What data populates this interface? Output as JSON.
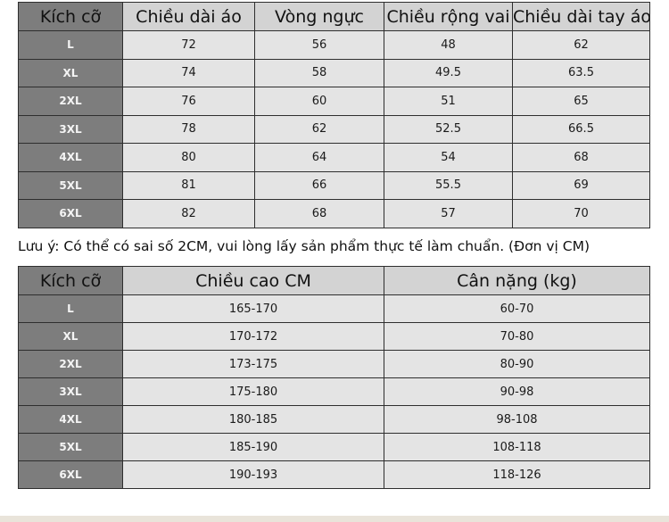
{
  "size_table": {
    "header": [
      "Kích cỡ",
      "Chiều dài áo",
      "Vòng ngực",
      "Chiều rộng vai",
      "Chiều dài tay áo"
    ],
    "rows": [
      [
        "L",
        "72",
        "56",
        "48",
        "62"
      ],
      [
        "XL",
        "74",
        "58",
        "49.5",
        "63.5"
      ],
      [
        "2XL",
        "76",
        "60",
        "51",
        "65"
      ],
      [
        "3XL",
        "78",
        "62",
        "52.5",
        "66.5"
      ],
      [
        "4XL",
        "80",
        "64",
        "54",
        "68"
      ],
      [
        "5XL",
        "81",
        "66",
        "55.5",
        "69"
      ],
      [
        "6XL",
        "82",
        "68",
        "57",
        "70"
      ]
    ]
  },
  "note": "Lưu ý: Có thể có sai số 2CM, vui lòng lấy sản phẩm thực tế làm chuẩn. (Đơn vị CM)",
  "fit_table": {
    "header": [
      "Kích cỡ",
      "Chiều cao CM",
      "Cân nặng (kg)"
    ],
    "rows": [
      [
        "L",
        "165-170",
        "60-70"
      ],
      [
        "XL",
        "170-172",
        "70-80"
      ],
      [
        "2XL",
        "173-175",
        "80-90"
      ],
      [
        "3XL",
        "175-180",
        "90-98"
      ],
      [
        "4XL",
        "180-185",
        "98-108"
      ],
      [
        "5XL",
        "185-190",
        "108-118"
      ],
      [
        "6XL",
        "190-193",
        "118-126"
      ]
    ]
  }
}
